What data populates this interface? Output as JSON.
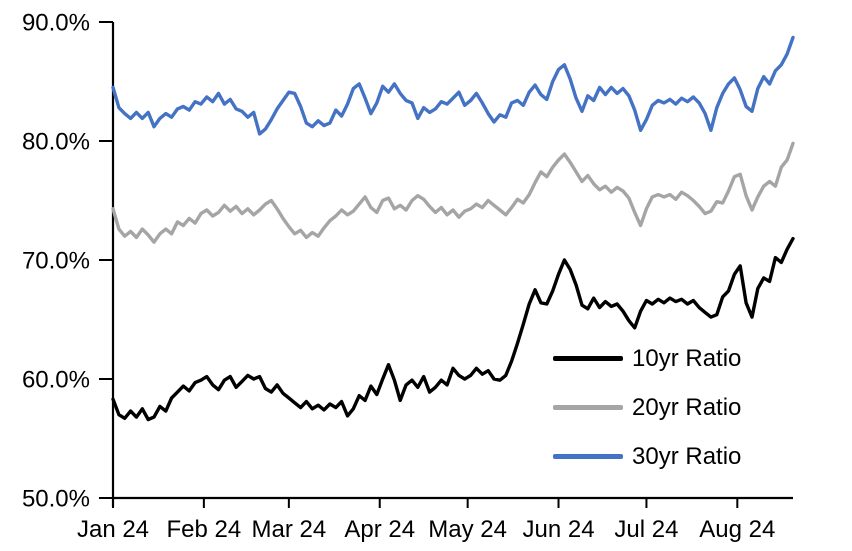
{
  "chart_data": {
    "type": "line",
    "title": "",
    "xlabel": "",
    "ylabel": "",
    "grid": false,
    "background_color": "#ffffff",
    "axis_color": "#000000",
    "x": {
      "unit": "date",
      "tick_labels": [
        "Jan 24",
        "Feb 24",
        "Mar 24",
        "Apr 24",
        "May 24",
        "Jun 24",
        "Jul 24",
        "Aug 24"
      ],
      "tick_day_offsets": [
        0,
        31,
        60,
        91,
        121,
        152,
        182,
        213
      ],
      "total_days": 232,
      "sample_interval_days": 2
    },
    "y": {
      "unit": "%",
      "min": 50,
      "max": 90,
      "tick_values": [
        90,
        80,
        70,
        60,
        50
      ],
      "tick_labels": [
        "90.0%",
        "80.0%",
        "70.0%",
        "60.0%",
        "50.0%"
      ]
    },
    "legend": {
      "position": "inside-lower-right",
      "entries": [
        "10yr Ratio",
        "20yr Ratio",
        "30yr Ratio"
      ]
    },
    "series": [
      {
        "name": "10yr Ratio",
        "color": "#000000",
        "values": [
          58.3,
          57.0,
          56.7,
          57.3,
          56.8,
          57.5,
          56.6,
          56.8,
          57.7,
          57.3,
          58.4,
          58.9,
          59.4,
          59.0,
          59.7,
          59.9,
          60.2,
          59.5,
          59.1,
          59.9,
          60.2,
          59.3,
          59.8,
          60.3,
          60.0,
          60.2,
          59.2,
          58.9,
          59.5,
          58.8,
          58.4,
          58.0,
          57.6,
          58.1,
          57.5,
          57.8,
          57.4,
          57.9,
          57.6,
          58.1,
          56.9,
          57.5,
          58.6,
          58.2,
          59.4,
          58.7,
          60.0,
          61.2,
          59.9,
          58.2,
          59.5,
          59.9,
          59.3,
          60.2,
          58.9,
          59.3,
          59.9,
          59.5,
          60.9,
          60.3,
          60.0,
          60.3,
          60.9,
          60.4,
          60.7,
          60.0,
          59.9,
          60.3,
          61.5,
          63.0,
          64.6,
          66.3,
          67.5,
          66.4,
          66.3,
          67.4,
          68.8,
          70.0,
          69.2,
          67.9,
          66.2,
          65.9,
          66.8,
          66.0,
          66.5,
          66.1,
          66.3,
          65.7,
          64.9,
          64.3,
          65.7,
          66.6,
          66.3,
          66.7,
          66.4,
          66.8,
          66.5,
          66.7,
          66.3,
          66.6,
          66.0,
          65.6,
          65.2,
          65.4,
          66.9,
          67.4,
          68.8,
          69.5,
          66.4,
          65.2,
          67.6,
          68.5,
          68.2,
          70.2,
          69.8,
          70.9,
          71.8
        ]
      },
      {
        "name": "20yr Ratio",
        "color": "#A5A5A5",
        "values": [
          74.3,
          72.6,
          72.0,
          72.4,
          71.9,
          72.6,
          72.1,
          71.5,
          72.2,
          72.6,
          72.2,
          73.2,
          72.9,
          73.5,
          73.1,
          73.9,
          74.2,
          73.7,
          74.0,
          74.6,
          74.1,
          74.5,
          73.9,
          74.3,
          73.8,
          74.2,
          74.7,
          75.0,
          74.3,
          73.5,
          72.8,
          72.2,
          72.5,
          71.9,
          72.3,
          72.0,
          72.7,
          73.3,
          73.7,
          74.2,
          73.8,
          74.1,
          74.7,
          75.3,
          74.4,
          74.0,
          75.0,
          75.2,
          74.3,
          74.6,
          74.2,
          75.0,
          75.4,
          75.1,
          74.5,
          74.0,
          74.4,
          73.8,
          74.2,
          73.6,
          74.1,
          74.3,
          74.7,
          74.4,
          75.0,
          74.6,
          74.2,
          73.8,
          74.4,
          75.1,
          74.8,
          75.5,
          76.5,
          77.4,
          77.0,
          77.8,
          78.4,
          78.9,
          78.2,
          77.4,
          76.6,
          77.1,
          76.4,
          75.9,
          76.2,
          75.7,
          76.1,
          75.8,
          75.2,
          74.0,
          72.9,
          74.3,
          75.3,
          75.5,
          75.3,
          75.5,
          75.1,
          75.7,
          75.4,
          75.0,
          74.5,
          73.9,
          74.1,
          74.9,
          74.8,
          75.8,
          77.0,
          77.2,
          75.4,
          74.2,
          75.3,
          76.2,
          76.6,
          76.2,
          77.8,
          78.4,
          79.8
        ]
      },
      {
        "name": "30yr Ratio",
        "color": "#4472C4",
        "values": [
          84.5,
          82.8,
          82.3,
          81.9,
          82.4,
          81.9,
          82.4,
          81.2,
          81.9,
          82.3,
          82.0,
          82.7,
          82.9,
          82.6,
          83.3,
          83.1,
          83.7,
          83.3,
          84.0,
          83.1,
          83.5,
          82.7,
          82.5,
          82.0,
          82.4,
          80.6,
          81.0,
          81.8,
          82.7,
          83.4,
          84.1,
          84.0,
          82.9,
          81.5,
          81.2,
          81.7,
          81.3,
          81.5,
          82.6,
          82.1,
          83.1,
          84.4,
          84.8,
          83.6,
          82.3,
          83.2,
          84.6,
          84.1,
          84.8,
          84.0,
          83.4,
          83.2,
          81.9,
          82.8,
          82.4,
          82.7,
          83.3,
          83.1,
          83.6,
          84.1,
          83.0,
          83.4,
          84.0,
          83.2,
          82.3,
          81.6,
          82.2,
          82.0,
          83.2,
          83.4,
          83.0,
          84.1,
          84.7,
          83.9,
          83.5,
          85.0,
          86.0,
          86.4,
          85.2,
          83.6,
          82.5,
          83.8,
          83.4,
          84.5,
          83.9,
          84.5,
          84.0,
          84.4,
          83.8,
          82.6,
          80.9,
          81.8,
          83.0,
          83.4,
          83.2,
          83.5,
          83.1,
          83.6,
          83.3,
          83.7,
          83.2,
          82.3,
          80.9,
          82.8,
          84.0,
          84.8,
          85.3,
          84.3,
          82.9,
          82.5,
          84.4,
          85.4,
          84.8,
          85.9,
          86.4,
          87.3,
          88.7
        ]
      }
    ]
  }
}
